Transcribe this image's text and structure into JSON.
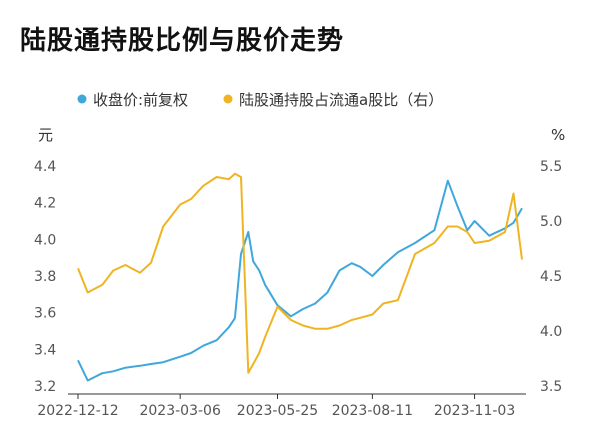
{
  "title": "陆股通持股比例与股价走势",
  "chart_data": {
    "type": "line",
    "title": "陆股通持股比例与股价走势",
    "left_unit": "元",
    "right_unit": "%",
    "y_left_lim": [
      3.2,
      4.4
    ],
    "y_left_ticks": [
      "4.4",
      "4.2",
      "4.0",
      "3.8",
      "3.6",
      "3.4",
      "3.2"
    ],
    "y_right_lim": [
      3.5,
      5.5
    ],
    "y_right_ticks": [
      "5.5",
      "5.0",
      "4.5",
      "4.0",
      "3.5"
    ],
    "x_ticks": [
      "2022-12-12",
      "2023-03-06",
      "2023-05-25",
      "2023-08-11",
      "2023-11-03"
    ],
    "legend_position": "top",
    "grid": false,
    "series": [
      {
        "name": "收盘价:前复权",
        "axis": "left",
        "color": "#3fa7dc",
        "x": [
          "2022-12-12",
          "2022-12-20",
          "2023-01-01",
          "2023-01-10",
          "2023-01-20",
          "2023-02-01",
          "2023-02-10",
          "2023-02-20",
          "2023-03-06",
          "2023-03-15",
          "2023-03-25",
          "2023-04-05",
          "2023-04-15",
          "2023-04-20",
          "2023-04-25",
          "2023-05-01",
          "2023-05-05",
          "2023-05-10",
          "2023-05-15",
          "2023-05-25",
          "2023-06-05",
          "2023-06-15",
          "2023-06-25",
          "2023-07-05",
          "2023-07-15",
          "2023-07-25",
          "2023-08-01",
          "2023-08-11",
          "2023-08-20",
          "2023-09-01",
          "2023-09-15",
          "2023-10-01",
          "2023-10-12",
          "2023-10-20",
          "2023-10-28",
          "2023-11-03",
          "2023-11-15",
          "2023-11-28",
          "2023-12-05",
          "2023-12-12"
        ],
        "values": [
          3.34,
          3.23,
          3.27,
          3.28,
          3.3,
          3.31,
          3.32,
          3.33,
          3.36,
          3.38,
          3.42,
          3.45,
          3.52,
          3.57,
          3.92,
          4.04,
          3.88,
          3.83,
          3.75,
          3.64,
          3.58,
          3.62,
          3.65,
          3.71,
          3.83,
          3.87,
          3.85,
          3.8,
          3.86,
          3.93,
          3.98,
          4.05,
          4.32,
          4.18,
          4.05,
          4.1,
          4.02,
          4.06,
          4.09,
          4.17
        ]
      },
      {
        "name": "陆股通持股占流通a股比（右）",
        "axis": "right",
        "color": "#f0b422",
        "x": [
          "2022-12-12",
          "2022-12-20",
          "2023-01-01",
          "2023-01-10",
          "2023-01-20",
          "2023-02-01",
          "2023-02-10",
          "2023-02-20",
          "2023-03-06",
          "2023-03-15",
          "2023-03-25",
          "2023-04-05",
          "2023-04-15",
          "2023-04-20",
          "2023-04-25",
          "2023-05-01",
          "2023-05-05",
          "2023-05-10",
          "2023-05-15",
          "2023-05-25",
          "2023-06-05",
          "2023-06-15",
          "2023-06-25",
          "2023-07-05",
          "2023-07-15",
          "2023-07-25",
          "2023-08-01",
          "2023-08-11",
          "2023-08-20",
          "2023-09-01",
          "2023-09-15",
          "2023-10-01",
          "2023-10-12",
          "2023-10-20",
          "2023-10-28",
          "2023-11-03",
          "2023-11-15",
          "2023-11-28",
          "2023-12-05",
          "2023-12-12"
        ],
        "values": [
          4.57,
          4.35,
          4.42,
          4.55,
          4.6,
          4.53,
          4.62,
          4.95,
          5.15,
          5.2,
          5.32,
          5.4,
          5.38,
          5.43,
          5.4,
          3.62,
          3.7,
          3.8,
          3.95,
          4.22,
          4.1,
          4.05,
          4.02,
          4.02,
          4.05,
          4.1,
          4.12,
          4.15,
          4.25,
          4.28,
          4.7,
          4.8,
          4.95,
          4.95,
          4.9,
          4.8,
          4.82,
          4.9,
          5.25,
          4.65
        ]
      }
    ]
  }
}
